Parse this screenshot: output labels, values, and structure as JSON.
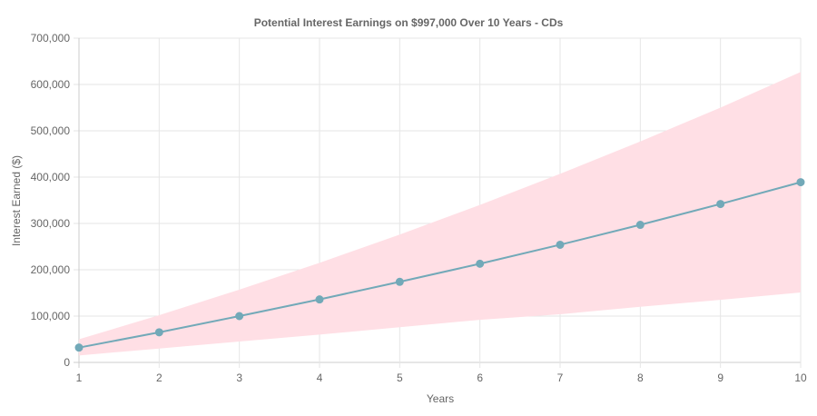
{
  "chart_data": {
    "type": "line",
    "title": "Potential Interest Earnings on $997,000 Over 10 Years - CDs",
    "xlabel": "Years",
    "ylabel": "Interest Earned ($)",
    "x": [
      1,
      2,
      3,
      4,
      5,
      6,
      7,
      8,
      9,
      10
    ],
    "x_tick_labels": [
      "1",
      "2",
      "3",
      "4",
      "5",
      "6",
      "7",
      "8",
      "9",
      "10"
    ],
    "ylim": [
      0,
      700000
    ],
    "y_ticks": [
      0,
      100000,
      200000,
      300000,
      400000,
      500000,
      600000,
      700000
    ],
    "y_tick_labels": [
      "0",
      "100,000",
      "200,000",
      "300,000",
      "400,000",
      "500,000",
      "600,000",
      "700,000"
    ],
    "grid": true,
    "legend": "none",
    "series": [
      {
        "role": "expected",
        "color": "#72a9b8",
        "values": [
          32000,
          65000,
          100000,
          136000,
          174000,
          213000,
          254000,
          297000,
          342000,
          389000
        ]
      }
    ],
    "band": {
      "color": "#ffdfe5",
      "upper": [
        50000,
        102000,
        157000,
        215000,
        276000,
        340000,
        407000,
        477000,
        550000,
        627000
      ],
      "lower": [
        15000,
        30000,
        45000,
        60000,
        76000,
        92000,
        104000,
        120000,
        135000,
        151000
      ]
    }
  }
}
